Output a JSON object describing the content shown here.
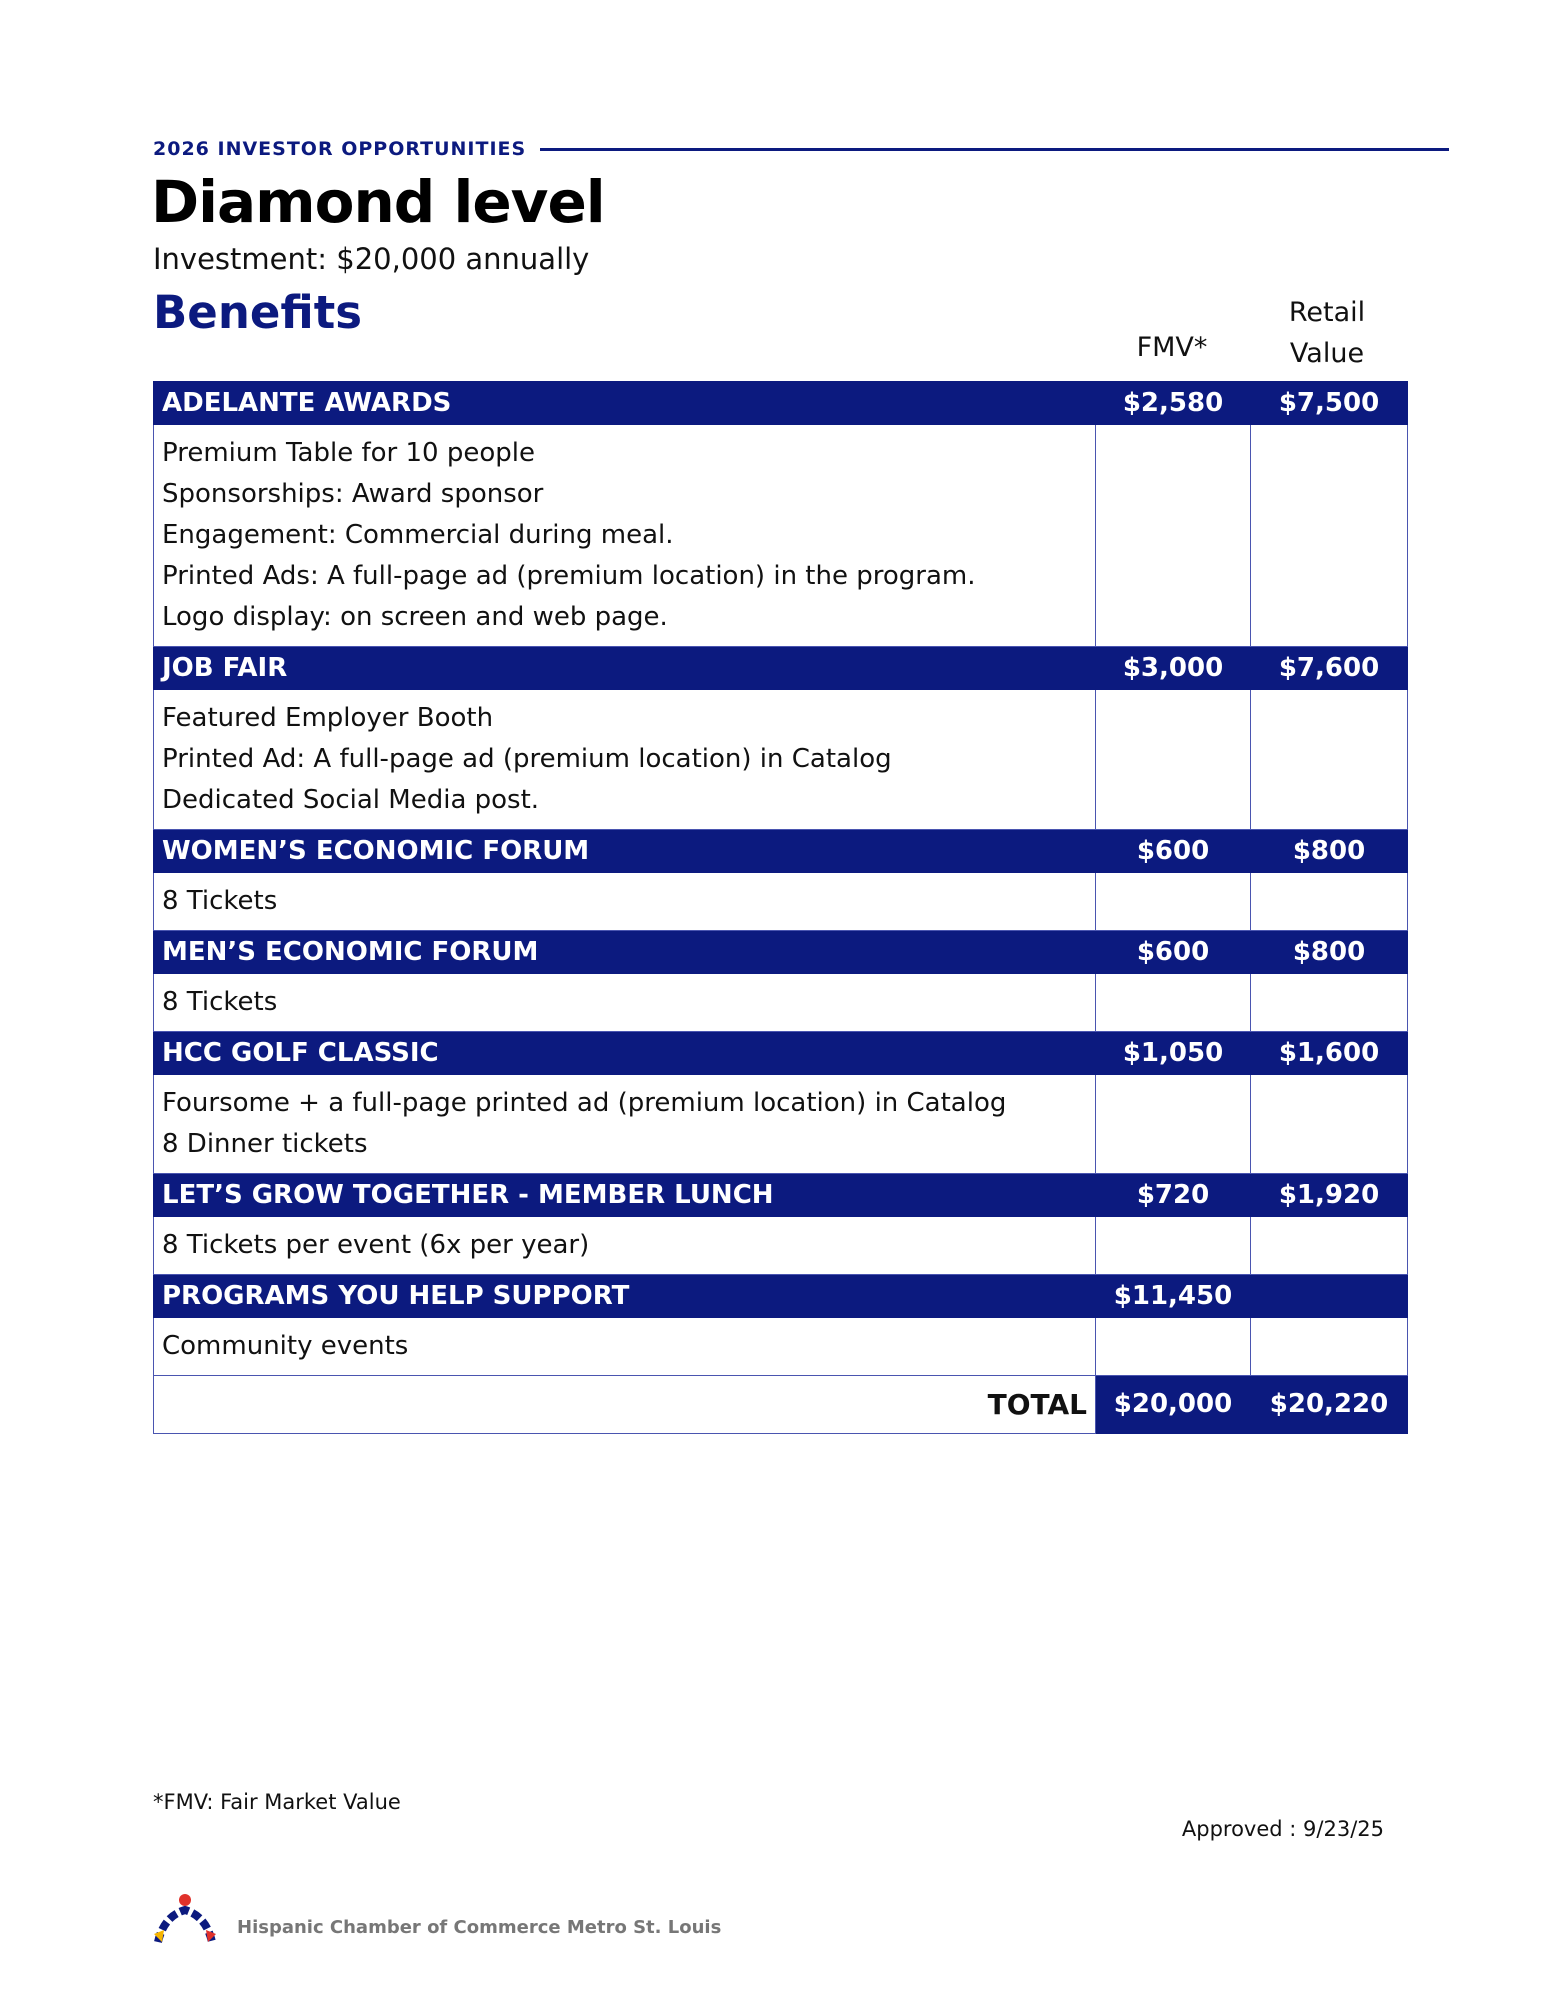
{
  "header": {
    "eyebrow": "2026 INVESTOR OPPORTUNITIES",
    "title": "Diamond level",
    "investment": "Investment: $20,000 annually",
    "section": "Benefits"
  },
  "table": {
    "columns": [
      "FMV*",
      "Retail Value"
    ],
    "sections": [
      {
        "name": "ADELANTE AWARDS",
        "fmv": "$2,580",
        "retail": "$7,500",
        "items": [
          "Premium Table for 10 people",
          "Sponsorships: Award sponsor",
          "Engagement: Commercial during meal.",
          "Printed Ads: A full-page ad (premium location) in the program.",
          "Logo display: on screen and web page."
        ]
      },
      {
        "name": "JOB FAIR",
        "fmv": "$3,000",
        "retail": "$7,600",
        "items": [
          "Featured Employer Booth",
          "Printed Ad: A full-page ad (premium location) in Catalog",
          "Dedicated Social Media post."
        ]
      },
      {
        "name": "WOMEN’S ECONOMIC FORUM",
        "fmv": "$600",
        "retail": "$800",
        "items": [
          "8 Tickets"
        ]
      },
      {
        "name": "MEN’S ECONOMIC FORUM",
        "fmv": "$600",
        "retail": "$800",
        "items": [
          "8 Tickets"
        ]
      },
      {
        "name": "HCC GOLF CLASSIC",
        "fmv": "$1,050",
        "retail": "$1,600",
        "items": [
          "Foursome + a full-page printed ad (premium location) in Catalog",
          "8 Dinner tickets"
        ]
      },
      {
        "name": "LET’S GROW TOGETHER - MEMBER LUNCH",
        "fmv": "$720",
        "retail": "$1,920",
        "items": [
          "8 Tickets per event (6x per year)"
        ]
      },
      {
        "name": "PROGRAMS YOU HELP SUPPORT",
        "fmv": "$11,450",
        "items": [
          "Community events"
        ]
      }
    ],
    "total": {
      "label": "TOTAL",
      "fmv": "$20,000",
      "retail": "$20,220"
    }
  },
  "footnote": "*FMV: Fair Market Value",
  "approved": "Approved : 9/23/25",
  "footer": "Hispanic Chamber of Commerce Metro St. Louis"
}
